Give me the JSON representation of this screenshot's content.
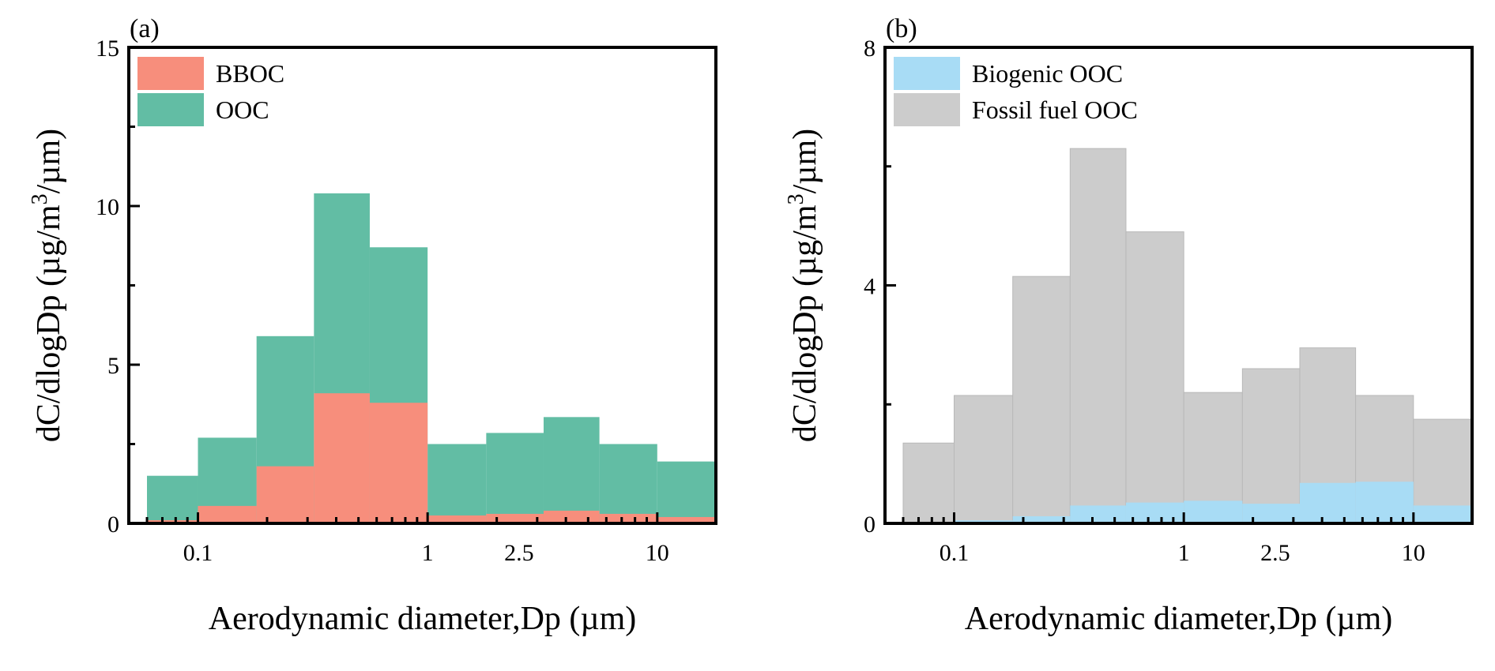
{
  "chart_data": [
    {
      "type": "area",
      "panel_label": "(a)",
      "xlabel": "Aerodynamic diameter,Dp (µm)",
      "ylabel": "dC/dlogDp (µg/m",
      "ylabel_sup": "3",
      "ylabel_tail": "/µm)",
      "x_scale": "log",
      "xlim": [
        0.05,
        18
      ],
      "ylim": [
        0,
        15
      ],
      "x_tick_labels": [
        {
          "value": 0.1,
          "label": "0.1"
        },
        {
          "value": 1,
          "label": "1"
        },
        {
          "value": 2.5,
          "label": "2.5"
        },
        {
          "value": 10,
          "label": "10"
        }
      ],
      "y_tick_labels": [
        {
          "value": 0,
          "label": "0"
        },
        {
          "value": 5,
          "label": "5"
        },
        {
          "value": 10,
          "label": "10"
        },
        {
          "value": 15,
          "label": "15"
        }
      ],
      "bin_edges": [
        0.06,
        0.1,
        0.18,
        0.32,
        0.56,
        1.0,
        1.8,
        3.2,
        5.6,
        10,
        18
      ],
      "series": [
        {
          "name": "OOC",
          "color": "#62bda4",
          "values": [
            1.5,
            2.7,
            5.9,
            10.4,
            8.7,
            2.5,
            2.85,
            3.35,
            2.5,
            1.95
          ]
        },
        {
          "name": "BBOC",
          "color": "#f78e7c",
          "values": [
            0.1,
            0.55,
            1.8,
            4.1,
            3.8,
            0.25,
            0.3,
            0.4,
            0.3,
            0.2
          ]
        }
      ],
      "legend_order": [
        "BBOC",
        "OOC"
      ],
      "legend_position": "top-left"
    },
    {
      "type": "area",
      "panel_label": "(b)",
      "xlabel": "Aerodynamic diameter,Dp (µm)",
      "ylabel": "dC/dlogDp (µg/m",
      "ylabel_sup": "3",
      "ylabel_tail": "/µm)",
      "x_scale": "log",
      "xlim": [
        0.05,
        18
      ],
      "ylim": [
        0,
        8
      ],
      "x_tick_labels": [
        {
          "value": 0.1,
          "label": "0.1"
        },
        {
          "value": 1,
          "label": "1"
        },
        {
          "value": 2.5,
          "label": "2.5"
        },
        {
          "value": 10,
          "label": "10"
        }
      ],
      "y_tick_labels": [
        {
          "value": 0,
          "label": "0"
        },
        {
          "value": 4,
          "label": "4"
        },
        {
          "value": 8,
          "label": "8"
        }
      ],
      "bin_edges": [
        0.06,
        0.1,
        0.18,
        0.32,
        0.56,
        1.0,
        1.8,
        3.2,
        5.6,
        10,
        18
      ],
      "series": [
        {
          "name": "Fossil fuel OOC",
          "color": "#cccccc",
          "values": [
            1.35,
            2.15,
            4.15,
            6.3,
            4.9,
            2.2,
            2.6,
            2.95,
            2.15,
            1.75
          ]
        },
        {
          "name": "Biogenic OOC",
          "color": "#a8dcf5",
          "values": [
            0.02,
            0.05,
            0.12,
            0.3,
            0.35,
            0.38,
            0.33,
            0.68,
            0.7,
            0.3
          ]
        }
      ],
      "legend_order": [
        "Biogenic OOC",
        "Fossil fuel OOC"
      ],
      "legend_position": "top-left"
    }
  ]
}
